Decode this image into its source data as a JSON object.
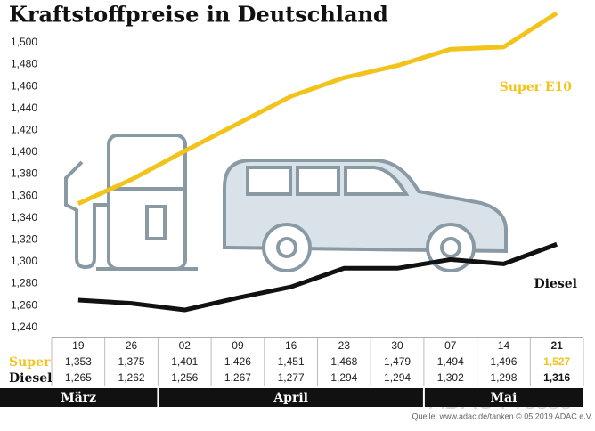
{
  "chart_data": {
    "type": "line",
    "title": "Kraftstoffpreise in Deutschland",
    "categories": [
      "19",
      "26",
      "02",
      "09",
      "16",
      "23",
      "30",
      "07",
      "14",
      "21"
    ],
    "months": [
      {
        "label": "März",
        "span": 2
      },
      {
        "label": "April",
        "span": 5
      },
      {
        "label": "Mai",
        "span": 3
      }
    ],
    "series": [
      {
        "name": "Super E10",
        "row_label": "Super",
        "color": "#f2c31a",
        "values": [
          1.353,
          1.375,
          1.401,
          1.426,
          1.451,
          1.468,
          1.479,
          1.494,
          1.496,
          1.527
        ],
        "value_labels": [
          "1,353",
          "1,375",
          "1,401",
          "1,426",
          "1,451",
          "1,468",
          "1,479",
          "1,494",
          "1,496",
          "1,527"
        ]
      },
      {
        "name": "Diesel",
        "row_label": "Diesel",
        "color": "#111111",
        "values": [
          1.265,
          1.262,
          1.256,
          1.267,
          1.277,
          1.294,
          1.294,
          1.302,
          1.298,
          1.316
        ],
        "value_labels": [
          "1,265",
          "1,262",
          "1,256",
          "1,267",
          "1,277",
          "1,294",
          "1,294",
          "1,302",
          "1,298",
          "1,316"
        ]
      }
    ],
    "ylim": [
      1.23,
      1.53
    ],
    "yticks": [
      {
        "value": 1.24,
        "label": "1,240"
      },
      {
        "value": 1.26,
        "label": "1,260"
      },
      {
        "value": 1.28,
        "label": "1,280"
      },
      {
        "value": 1.3,
        "label": "1,300"
      },
      {
        "value": 1.32,
        "label": "1,320"
      },
      {
        "value": 1.34,
        "label": "1,340"
      },
      {
        "value": 1.36,
        "label": "1,360"
      },
      {
        "value": 1.38,
        "label": "1,380"
      },
      {
        "value": 1.4,
        "label": "1,400"
      },
      {
        "value": 1.42,
        "label": "1,420"
      },
      {
        "value": 1.44,
        "label": "1,440"
      },
      {
        "value": 1.46,
        "label": "1,460"
      },
      {
        "value": 1.48,
        "label": "1,480"
      },
      {
        "value": 1.5,
        "label": "1,500"
      }
    ],
    "grid": false,
    "source": "Quelle: www.adac.de/tanken  © 05.2019  ADAC e.V.",
    "watermark": "ADAC Presse"
  }
}
